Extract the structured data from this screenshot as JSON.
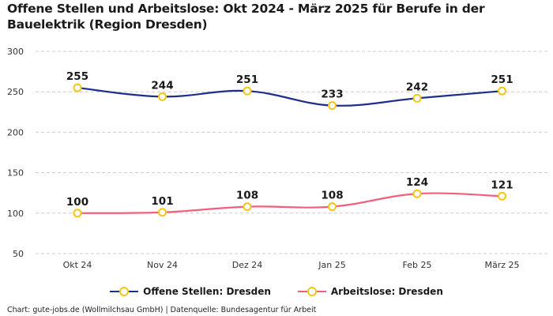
{
  "title": "Offene Stellen und Arbeitslose: Okt 2024 - März 2025 für Berufe in der Bauelektrik (Region Dresden)",
  "footer": "Chart: gute-jobs.de (Wollmilchsau GmbH) | Datenquelle: Bundesagentur für Arbeit",
  "colors": {
    "series1": "#1f2e8a",
    "series2": "#f0607a",
    "marker": "#f5c518",
    "grid": "#cccccc"
  },
  "chart_data": {
    "type": "line",
    "title": "Offene Stellen und Arbeitslose: Okt 2024 - März 2025 für Berufe in der Bauelektrik (Region Dresden)",
    "categories": [
      "Okt 24",
      "Nov 24",
      "Dez 24",
      "Jan 25",
      "Feb 25",
      "März 25"
    ],
    "series": [
      {
        "name": "Offene Stellen: Dresden",
        "values": [
          255,
          244,
          251,
          233,
          242,
          251
        ]
      },
      {
        "name": "Arbeitslose: Dresden",
        "values": [
          100,
          101,
          108,
          108,
          124,
          121
        ]
      }
    ],
    "ylim": [
      50,
      300
    ],
    "yticks": [
      50,
      100,
      150,
      200,
      250,
      300
    ],
    "grid": true,
    "legend": "bottom-center"
  }
}
